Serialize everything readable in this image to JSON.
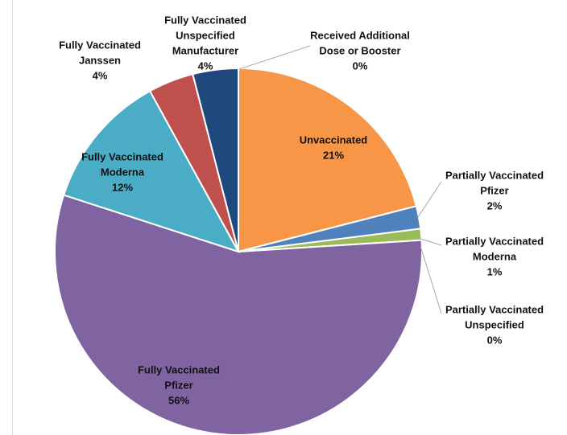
{
  "chart_data": {
    "type": "pie",
    "labels": [
      [
        "Received Additional",
        "Dose or Booster"
      ],
      [
        "Unvaccinated"
      ],
      [
        "Partially Vaccinated",
        "Pfizer"
      ],
      [
        "Partially Vaccinated",
        "Moderna"
      ],
      [
        "Partially Vaccinated",
        "Unspecified"
      ],
      [
        "Fully Vaccinated",
        "Pfizer"
      ],
      [
        "Fully Vaccinated",
        "Moderna"
      ],
      [
        "Fully Vaccinated",
        "Janssen"
      ],
      [
        "Fully Vaccinated",
        "Unspecified",
        "Manufacturer"
      ]
    ],
    "values": [
      0,
      21,
      2,
      1,
      0,
      56,
      12,
      4,
      4
    ],
    "value_labels": [
      "0%",
      "21%",
      "2%",
      "1%",
      "0%",
      "56%",
      "12%",
      "4%",
      "4%"
    ],
    "colors": [
      "#a5a5a5",
      "#f79646",
      "#4f81bd",
      "#9bbb59",
      "#7f7f7f",
      "#8064a2",
      "#4bacc6",
      "#c0504d",
      "#1f497d"
    ]
  }
}
